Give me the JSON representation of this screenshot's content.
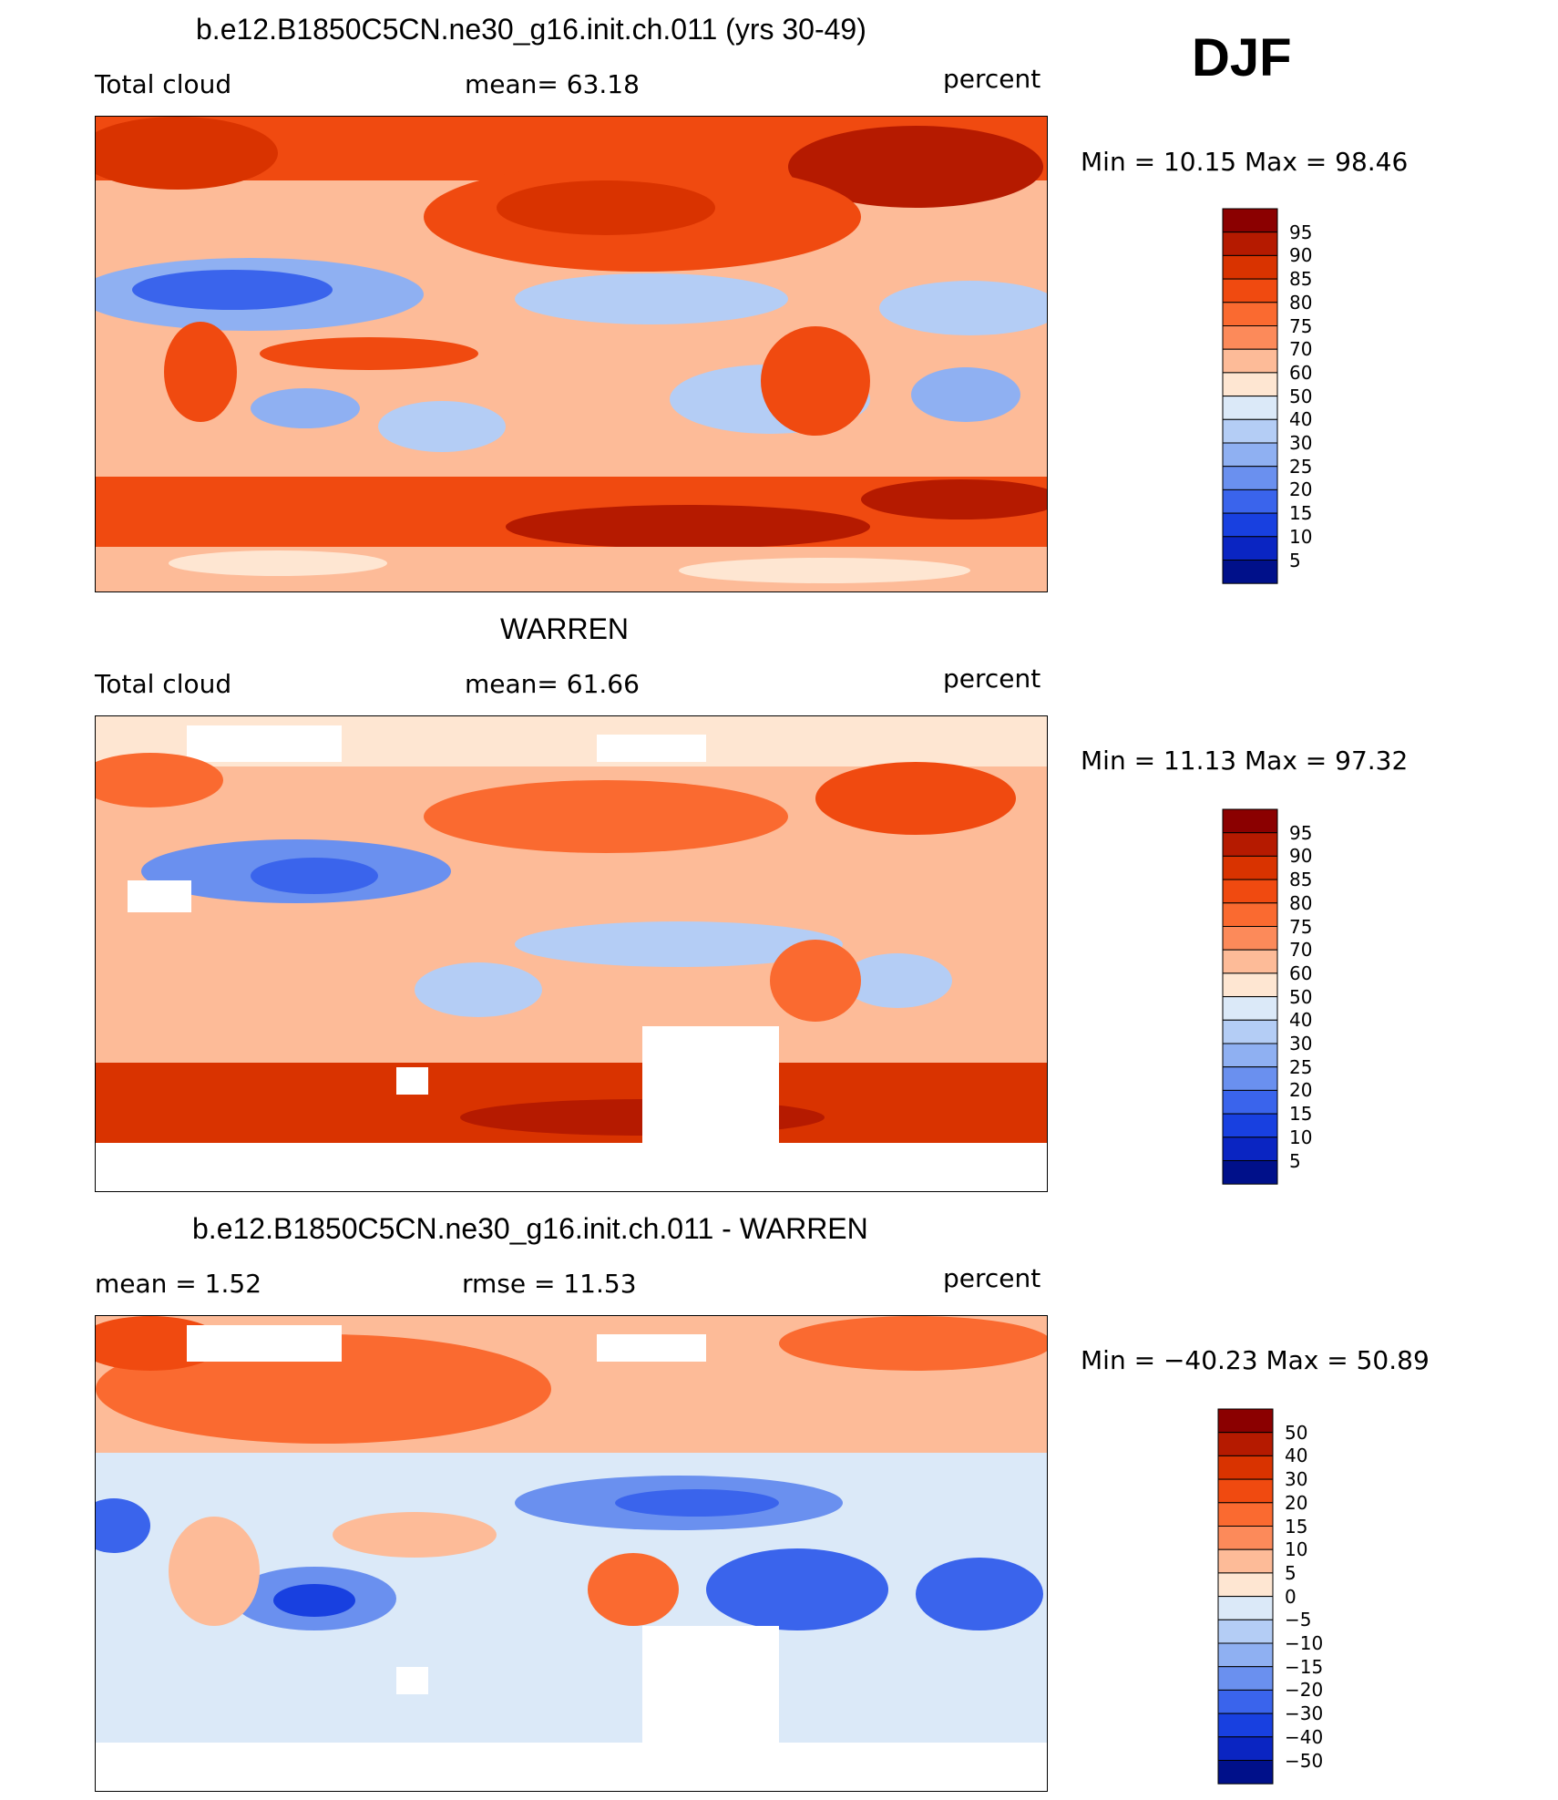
{
  "season": "DJF",
  "panels": [
    {
      "title": "b.e12.B1850C5CN.ne30_g16.init.ch.011 (yrs 30-49)",
      "left_label": "Total cloud",
      "center_label": "mean=  63.18",
      "right_label": "percent",
      "minmax": "Min =   10.15 Max =   98.46"
    },
    {
      "title": "WARREN",
      "left_label": "Total cloud",
      "center_label": "mean=  61.66",
      "right_label": "percent",
      "minmax": "Min =   11.13 Max =   97.32"
    },
    {
      "title": "b.e12.B1850C5CN.ne30_g16.init.ch.011 - WARREN",
      "left_label": "mean =    1.52",
      "center_label": "rmse =   11.53",
      "right_label": "percent",
      "minmax": "Min = −40.23 Max =   50.89"
    }
  ],
  "colorbars": {
    "abs_levels": [
      "95",
      "90",
      "85",
      "80",
      "75",
      "70",
      "60",
      "50",
      "40",
      "30",
      "25",
      "20",
      "15",
      "10",
      "5"
    ],
    "diff_levels": [
      "50",
      "40",
      "30",
      "20",
      "15",
      "10",
      "5",
      "0",
      "−5",
      "−10",
      "−15",
      "−20",
      "−30",
      "−40",
      "−50"
    ],
    "colors": [
      "#8b0000",
      "#b51a00",
      "#d93300",
      "#f04a10",
      "#fa6a30",
      "#fc8a5a",
      "#fdbb98",
      "#fee6d2",
      "#dbe9f8",
      "#b4cdf5",
      "#8fb0f2",
      "#6a90ef",
      "#3a64ec",
      "#1840e0",
      "#0a25c2",
      "#00108a"
    ]
  },
  "chart_data": [
    {
      "type": "heatmap",
      "title": "b.e12.B1850C5CN.ne30_g16.init.ch.011 (yrs 30-49)",
      "variable": "Total cloud",
      "units": "percent",
      "mean": 63.18,
      "min": 10.15,
      "max": 98.46,
      "contour_levels": [
        5,
        10,
        15,
        20,
        25,
        30,
        40,
        50,
        60,
        70,
        75,
        80,
        85,
        90,
        95
      ],
      "x_range": [
        0,
        360
      ],
      "y_range": [
        -90,
        90
      ]
    },
    {
      "type": "heatmap",
      "title": "WARREN",
      "variable": "Total cloud",
      "units": "percent",
      "mean": 61.66,
      "min": 11.13,
      "max": 97.32,
      "contour_levels": [
        5,
        10,
        15,
        20,
        25,
        30,
        40,
        50,
        60,
        70,
        75,
        80,
        85,
        90,
        95
      ],
      "x_range": [
        0,
        360
      ],
      "y_range": [
        -90,
        90
      ]
    },
    {
      "type": "heatmap",
      "title": "b.e12.B1850C5CN.ne30_g16.init.ch.011 - WARREN",
      "units": "percent",
      "mean": 1.52,
      "rmse": 11.53,
      "min": -40.23,
      "max": 50.89,
      "contour_levels": [
        -50,
        -40,
        -30,
        -20,
        -15,
        -10,
        -5,
        0,
        5,
        10,
        15,
        20,
        30,
        40,
        50
      ],
      "x_range": [
        0,
        360
      ],
      "y_range": [
        -90,
        90
      ]
    }
  ]
}
